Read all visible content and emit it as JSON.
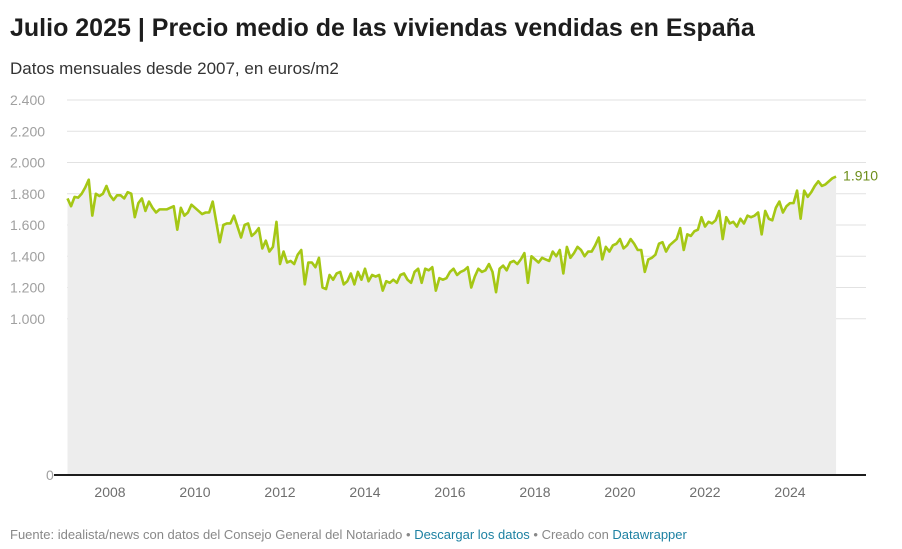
{
  "header": {
    "title": "Julio 2025 | Precio medio de las viviendas vendidas en España",
    "subtitle": "Datos mensuales desde 2007, en euros/m2"
  },
  "footer": {
    "source": "Fuente: idealista/news con datos del Consejo General del Notariado",
    "sep1": " • ",
    "download_link": "Descargar los datos",
    "sep2": " • ",
    "created": "Creado con ",
    "datawrapper_link": "Datawrapper"
  },
  "colors": {
    "line": "#a5c715",
    "area": "#ededed",
    "grid": "#e2e2e2",
    "axis": "#1d1d1d",
    "end_label": "#6d8e1a",
    "link": "#1d81a2"
  },
  "chart_data": {
    "type": "area",
    "title": "Julio 2025 | Precio medio de las viviendas vendidas en España",
    "subtitle": "Datos mensuales desde 2007, en euros/m2",
    "xlabel": "",
    "ylabel": "euros/m2",
    "x_start": "2007-01",
    "x_end": "2025-07",
    "frequency": "monthly",
    "ylim": [
      0,
      2400
    ],
    "yticks": [
      0,
      1000,
      1200,
      1400,
      1600,
      1800,
      2000,
      2200,
      2400
    ],
    "ytick_labels": [
      "0",
      "1.000",
      "1.200",
      "1.400",
      "1.600",
      "1.800",
      "2.000",
      "2.200",
      "2.400"
    ],
    "xticks": [
      2008,
      2010,
      2012,
      2014,
      2016,
      2018,
      2020,
      2022,
      2024
    ],
    "xtick_labels": [
      "2008",
      "2010",
      "2012",
      "2014",
      "2016",
      "2018",
      "2020",
      "2022",
      "2024"
    ],
    "grid": true,
    "end_label": "1.910",
    "series": [
      {
        "name": "Precio medio (euros/m2)",
        "values": [
          1770,
          1720,
          1780,
          1775,
          1800,
          1840,
          1890,
          1660,
          1800,
          1785,
          1800,
          1850,
          1790,
          1760,
          1790,
          1790,
          1770,
          1810,
          1800,
          1650,
          1740,
          1770,
          1690,
          1750,
          1710,
          1680,
          1700,
          1700,
          1700,
          1710,
          1720,
          1570,
          1710,
          1660,
          1680,
          1730,
          1710,
          1690,
          1670,
          1680,
          1680,
          1750,
          1620,
          1490,
          1600,
          1610,
          1610,
          1660,
          1590,
          1520,
          1600,
          1610,
          1530,
          1550,
          1580,
          1450,
          1500,
          1430,
          1460,
          1620,
          1350,
          1430,
          1360,
          1370,
          1350,
          1410,
          1440,
          1220,
          1360,
          1360,
          1330,
          1390,
          1200,
          1190,
          1280,
          1250,
          1290,
          1300,
          1220,
          1240,
          1290,
          1220,
          1300,
          1250,
          1320,
          1240,
          1280,
          1270,
          1280,
          1180,
          1240,
          1230,
          1250,
          1230,
          1280,
          1290,
          1250,
          1230,
          1300,
          1320,
          1230,
          1320,
          1310,
          1330,
          1180,
          1260,
          1250,
          1260,
          1300,
          1320,
          1280,
          1300,
          1310,
          1330,
          1200,
          1270,
          1320,
          1300,
          1310,
          1350,
          1300,
          1170,
          1320,
          1340,
          1310,
          1360,
          1370,
          1350,
          1380,
          1420,
          1230,
          1400,
          1380,
          1360,
          1390,
          1380,
          1370,
          1430,
          1400,
          1440,
          1290,
          1460,
          1390,
          1420,
          1460,
          1440,
          1400,
          1430,
          1430,
          1470,
          1520,
          1380,
          1460,
          1430,
          1470,
          1480,
          1510,
          1450,
          1470,
          1510,
          1480,
          1440,
          1440,
          1300,
          1380,
          1390,
          1410,
          1480,
          1490,
          1430,
          1470,
          1490,
          1510,
          1580,
          1440,
          1540,
          1530,
          1560,
          1570,
          1650,
          1590,
          1620,
          1610,
          1630,
          1690,
          1510,
          1650,
          1610,
          1620,
          1590,
          1640,
          1610,
          1660,
          1650,
          1660,
          1680,
          1540,
          1690,
          1640,
          1630,
          1710,
          1750,
          1680,
          1720,
          1740,
          1740,
          1820,
          1640,
          1820,
          1780,
          1810,
          1850,
          1880,
          1850,
          1860,
          1880,
          1900,
          1910
        ]
      }
    ]
  }
}
